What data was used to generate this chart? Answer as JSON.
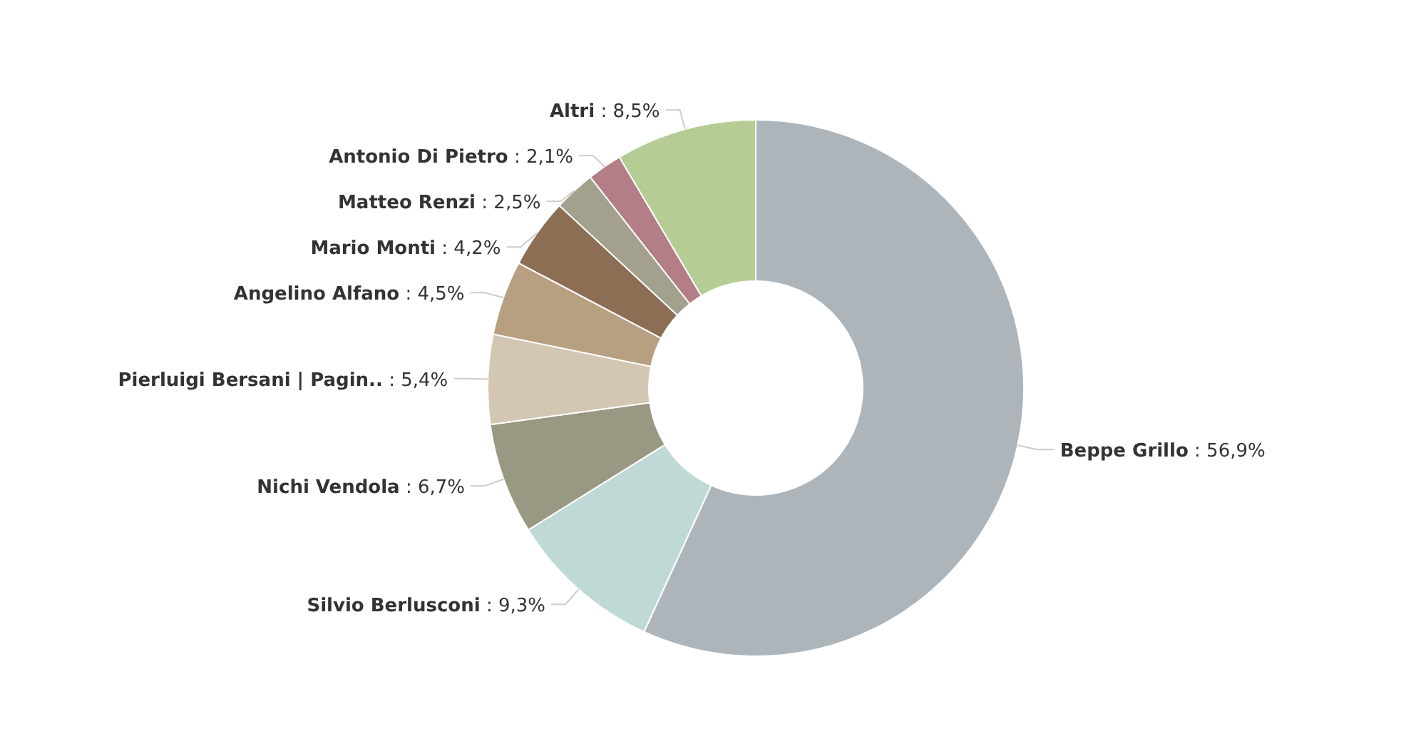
{
  "chart_data": {
    "type": "donut",
    "categories": [
      "Beppe Grillo",
      "Silvio Berlusconi",
      "Nichi Vendola",
      "Pierluigi Bersani | Pagin..",
      "Angelino Alfano",
      "Mario Monti",
      "Matteo Renzi",
      "Antonio Di Pietro",
      "Altri"
    ],
    "values": [
      56.9,
      9.3,
      6.7,
      5.4,
      4.5,
      4.2,
      2.5,
      2.1,
      8.5
    ],
    "value_labels": [
      ": 56,9%",
      ": 9,3%",
      ": 6,7%",
      ": 5,4%",
      ": 4,5%",
      ": 4,2%",
      ": 2,5%",
      ": 2,1%",
      ": 8,5%"
    ],
    "colors": [
      "#adb5bb",
      "#bfdad6",
      "#999883",
      "#d3c6b3",
      "#b89f82",
      "#8c6e55",
      "#a3a08e",
      "#b37e86",
      "#b5cc95"
    ]
  }
}
